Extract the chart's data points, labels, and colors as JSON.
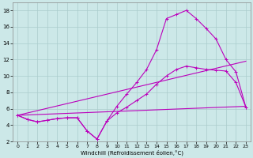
{
  "xlabel": "Windchill (Refroidissement éolien,°C)",
  "bg_color": "#cce8e8",
  "grid_color": "#aacccc",
  "line_color": "#bb00bb",
  "xlim": [
    -0.5,
    23.5
  ],
  "ylim": [
    2,
    19
  ],
  "xticks": [
    0,
    1,
    2,
    3,
    4,
    5,
    6,
    7,
    8,
    9,
    10,
    11,
    12,
    13,
    14,
    15,
    16,
    17,
    18,
    19,
    20,
    21,
    22,
    23
  ],
  "yticks": [
    2,
    4,
    6,
    8,
    10,
    12,
    14,
    16,
    18
  ],
  "line1_x": [
    0,
    1,
    2,
    3,
    4,
    5,
    6,
    7,
    8,
    9,
    10,
    11,
    12,
    13,
    14,
    15,
    16,
    17,
    18,
    19,
    20,
    21,
    22,
    23
  ],
  "line1_y": [
    5.2,
    4.7,
    4.4,
    4.6,
    4.8,
    4.9,
    4.9,
    3.3,
    2.3,
    4.5,
    6.3,
    7.8,
    9.2,
    10.8,
    13.2,
    17.0,
    17.5,
    18.0,
    17.0,
    15.8,
    14.5,
    12.0,
    10.5,
    6.2
  ],
  "line2_x": [
    0,
    1,
    2,
    3,
    4,
    5,
    6,
    7,
    8,
    9,
    10,
    11,
    12,
    13,
    14,
    15,
    16,
    17,
    18,
    19,
    20,
    21,
    22,
    23
  ],
  "line2_y": [
    5.2,
    4.7,
    4.4,
    4.6,
    4.8,
    4.9,
    4.9,
    3.3,
    2.3,
    4.5,
    5.5,
    6.2,
    7.0,
    7.8,
    9.0,
    10.0,
    10.8,
    11.2,
    11.0,
    10.8,
    10.7,
    10.6,
    9.2,
    6.2
  ],
  "line3_x": [
    0,
    23
  ],
  "line3_y": [
    5.2,
    11.8
  ],
  "line4_x": [
    0,
    23
  ],
  "line4_y": [
    5.2,
    6.3
  ],
  "marker_x": [
    0,
    1,
    2,
    3,
    4,
    5,
    6,
    7,
    8,
    9,
    10,
    11,
    12,
    13,
    14,
    15,
    16,
    17,
    18,
    19,
    20,
    21,
    22,
    23
  ],
  "marker2_y": [
    5.2,
    4.7,
    4.4,
    4.6,
    4.8,
    4.9,
    4.9,
    3.3,
    2.3,
    4.5,
    5.5,
    6.2,
    7.0,
    7.8,
    9.0,
    10.0,
    10.8,
    11.2,
    11.0,
    10.8,
    10.7,
    10.6,
    9.2,
    6.2
  ]
}
